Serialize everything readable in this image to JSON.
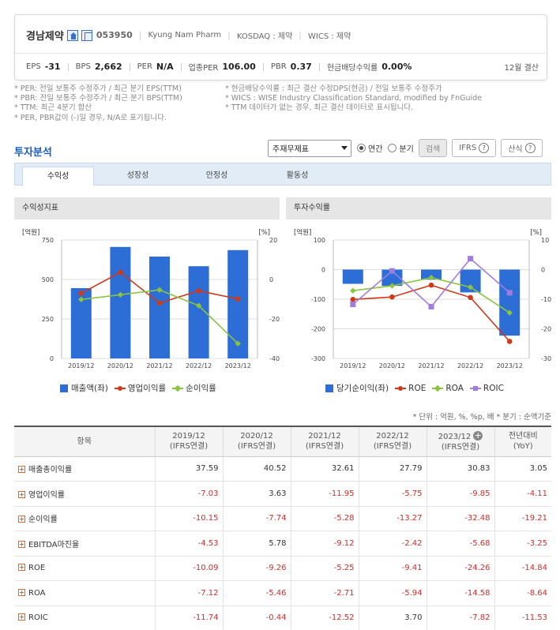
{
  "company": {
    "name": "경남제약",
    "code": "053950",
    "english_name": "Kyung Nam Pharm",
    "market": "KOSDAQ : 제약",
    "wics": "WICS : 제약",
    "settlement": "12월 결산",
    "stats": [
      {
        "label": "EPS",
        "value": "-31"
      },
      {
        "label": "BPS",
        "value": "2,662"
      },
      {
        "label": "PER",
        "value": "N/A"
      },
      {
        "label": "업종PER",
        "value": "106.00"
      },
      {
        "label": "PBR",
        "value": "0.37"
      },
      {
        "label": "현금배당수익률",
        "value": "0.00%"
      }
    ]
  },
  "notes": {
    "left": [
      "* PER: 전일 보통주 수정주가 / 최근 분기 EPS(TTM)",
      "* PBR: 전일 보통주 수정주가 / 최근 분기 BPS(TTM)",
      "* TTM: 최근 4분기 합산",
      "* PER, PBR값이 (-)일 경우, N/A로 표기됩니다."
    ],
    "right": [
      "* 현금배당수익률 : 최근 결산 수정DPS(현금) / 전일 보통주 수정주가",
      "* WICS : WISE Industry Classification Standard, modified by FnGuide",
      "* TTM 데이터가 없는 경우, 최근 결산 데이터로 표시됩니다."
    ]
  },
  "section_title": "투자분석",
  "controls": {
    "select_value": "주재무제표",
    "radio_annual": "연간",
    "radio_quarter": "분기",
    "search_label": "검색",
    "ifrs_label": "IFRS",
    "method_label": "산식"
  },
  "tabs": [
    "수익성",
    "성장성",
    "안정성",
    "활동성"
  ],
  "chart_titles": {
    "left": "수익성지표",
    "right": "투자수익률"
  },
  "colors": {
    "bar": "#2c6ed6",
    "red": "#cc3a1a",
    "green": "#8bc53f",
    "purple": "#a07ce0",
    "accent": "#1b60b6"
  },
  "chart_data": [
    {
      "type": "bar",
      "categories": [
        "2019/12",
        "2020/12",
        "2021/12",
        "2022/12",
        "2023/12"
      ],
      "left_unit": "[억원]",
      "right_unit": "[%]",
      "left_ticks": [
        "750",
        "500",
        "250",
        "0"
      ],
      "right_ticks": [
        "20",
        "0",
        "-20",
        "-40"
      ],
      "ylim_left": [
        0,
        750
      ],
      "ylim_right": [
        -40,
        20
      ],
      "series": [
        {
          "name": "매출액(좌)",
          "kind": "bar",
          "axis": "left",
          "values": [
            445,
            706,
            645,
            584,
            686
          ]
        },
        {
          "name": "영업이익률",
          "kind": "line",
          "axis": "right",
          "marker": "circle",
          "color": "#cc3a1a",
          "values": [
            -7.03,
            3.63,
            -11.95,
            -5.75,
            -9.85
          ]
        },
        {
          "name": "순이익률",
          "kind": "line",
          "axis": "right",
          "marker": "diamond",
          "color": "#8bc53f",
          "values": [
            -10.15,
            -7.74,
            -5.28,
            -13.27,
            -32.48
          ]
        }
      ]
    },
    {
      "type": "bar",
      "categories": [
        "2019/12",
        "2020/12",
        "2021/12",
        "2022/12",
        "2023/12"
      ],
      "left_unit": "[억원]",
      "right_unit": "[%]",
      "left_ticks": [
        "100",
        "0",
        "-100",
        "-200",
        "-300"
      ],
      "right_ticks": [
        "10",
        "0",
        "-10",
        "-20",
        "-30"
      ],
      "ylim_left": [
        -300,
        100
      ],
      "ylim_right": [
        -30,
        10
      ],
      "series": [
        {
          "name": "당기순이익(좌)",
          "kind": "bar",
          "axis": "left",
          "values": [
            -48,
            -55,
            -34,
            -77,
            -223
          ]
        },
        {
          "name": "ROE",
          "kind": "line",
          "axis": "right",
          "marker": "circle",
          "color": "#cc3a1a",
          "values": [
            -10.09,
            -9.26,
            -5.25,
            -9.41,
            -24.26
          ]
        },
        {
          "name": "ROA",
          "kind": "line",
          "axis": "right",
          "marker": "diamond",
          "color": "#8bc53f",
          "values": [
            -7.12,
            -5.46,
            -2.71,
            -5.94,
            -14.58
          ]
        },
        {
          "name": "ROIC",
          "kind": "line",
          "axis": "right",
          "marker": "square",
          "color": "#a07ce0",
          "values": [
            -11.74,
            -0.44,
            -12.52,
            3.7,
            -7.82
          ]
        }
      ]
    }
  ],
  "table": {
    "unit_note": "* 단위 : 억원, %, %p, 배    * 분기 : 순액기준",
    "item_header": "항목",
    "columns": [
      {
        "line1": "2019/12",
        "line2": "(IFRS연결)"
      },
      {
        "line1": "2020/12",
        "line2": "(IFRS연결)"
      },
      {
        "line1": "2021/12",
        "line2": "(IFRS연결)"
      },
      {
        "line1": "2022/12",
        "line2": "(IFRS연결)"
      },
      {
        "line1": "2023/12",
        "line2": "(IFRS연결)"
      },
      {
        "line1": "전년대비",
        "line2": "(YoY)"
      }
    ],
    "rows": [
      {
        "label": "매출총이익률",
        "values": [
          "37.59",
          "40.52",
          "32.61",
          "27.79",
          "30.83",
          "3.05"
        ]
      },
      {
        "label": "영업이익률",
        "values": [
          "-7.03",
          "3.63",
          "-11.95",
          "-5.75",
          "-9.85",
          "-4.11"
        ]
      },
      {
        "label": "순이익률",
        "values": [
          "-10.15",
          "-7.74",
          "-5.28",
          "-13.27",
          "-32.48",
          "-19.21"
        ]
      },
      {
        "label": "EBITDA마진율",
        "values": [
          "-4.53",
          "5.78",
          "-9.12",
          "-2.42",
          "-5.68",
          "-3.25"
        ]
      },
      {
        "label": "ROE",
        "values": [
          "-10.09",
          "-9.26",
          "-5.25",
          "-9.41",
          "-24.26",
          "-14.84"
        ]
      },
      {
        "label": "ROA",
        "values": [
          "-7.12",
          "-5.46",
          "-2.71",
          "-5.94",
          "-14.58",
          "-8.64"
        ]
      },
      {
        "label": "ROIC",
        "values": [
          "-11.74",
          "-0.44",
          "-12.52",
          "3.70",
          "-7.82",
          "-11.53"
        ]
      }
    ]
  }
}
